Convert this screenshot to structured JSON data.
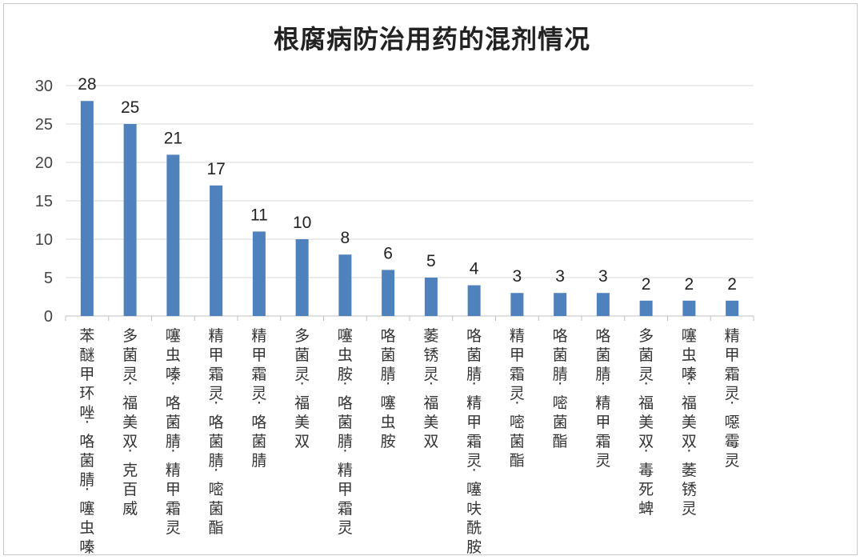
{
  "chart_data": {
    "type": "bar",
    "title": "根腐病防治用药的混剂情况",
    "xlabel": "",
    "ylabel": "",
    "ylim": [
      0,
      30
    ],
    "yticks": [
      0,
      5,
      10,
      15,
      20,
      25,
      30
    ],
    "grid": true,
    "legend": "none",
    "bar_color": "#4f81bd",
    "categories": [
      "苯醚甲环唑·咯菌腈·噻虫嗪",
      "多菌灵·福美双·克百威",
      "噻虫嗪·咯菌腈·精甲霜灵",
      "精甲霜灵·咯菌腈·嘧菌酯",
      "精甲霜灵·咯菌腈",
      "多菌灵·福美双",
      "噻虫胺·咯菌腈·精甲霜灵",
      "咯菌腈·噻虫胺",
      "萎锈灵·福美双",
      "咯菌腈·精甲霜灵·噻呋酰胺",
      "精甲霜灵·嘧菌酯",
      "咯菌腈·嘧菌酯",
      "咯菌腈·精甲霜灵",
      "多菌灵·福美双·毒死蜱",
      "噻虫嗪·福美双·萎锈灵",
      "精甲霜灵·噁霉灵"
    ],
    "values": [
      28,
      25,
      21,
      17,
      11,
      10,
      8,
      6,
      5,
      4,
      3,
      3,
      3,
      2,
      2,
      2
    ],
    "data_labels": [
      "28",
      "25",
      "21",
      "17",
      "11",
      "10",
      "8",
      "6",
      "5",
      "4",
      "3",
      "3",
      "3",
      "2",
      "2",
      "2"
    ]
  }
}
